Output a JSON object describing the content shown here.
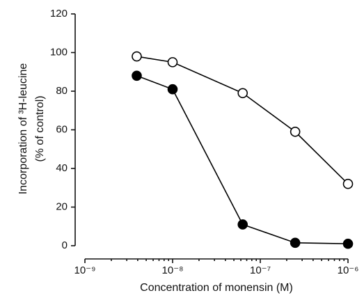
{
  "chart_data": {
    "type": "line",
    "x_label": "Concentration of monensin (M)",
    "y_label": [
      "Incorporation of ³H-leucine",
      "(% of control)"
    ],
    "x": [
      3.9e-09,
      1e-08,
      6.3e-08,
      2.5e-07,
      1e-06
    ],
    "series": [
      {
        "color": "#000000",
        "fill": "#ffffff",
        "values": [
          98,
          95,
          79,
          59,
          32
        ]
      },
      {
        "color": "#000000",
        "fill": "#000000",
        "values": [
          88,
          81,
          11,
          1.5,
          1
        ]
      }
    ],
    "xscale": "log",
    "xlim": [
      1e-09,
      1e-06
    ],
    "xticks": [
      {
        "value": 1e-09,
        "label": "10⁻⁹"
      },
      {
        "value": 1e-08,
        "label": "10⁻⁸"
      },
      {
        "value": 1e-07,
        "label": "10⁻⁷"
      },
      {
        "value": 1e-06,
        "label": "10⁻⁶"
      }
    ],
    "ylim": [
      0,
      120
    ],
    "yticks": [
      0,
      20,
      40,
      60,
      80,
      100,
      120
    ]
  }
}
